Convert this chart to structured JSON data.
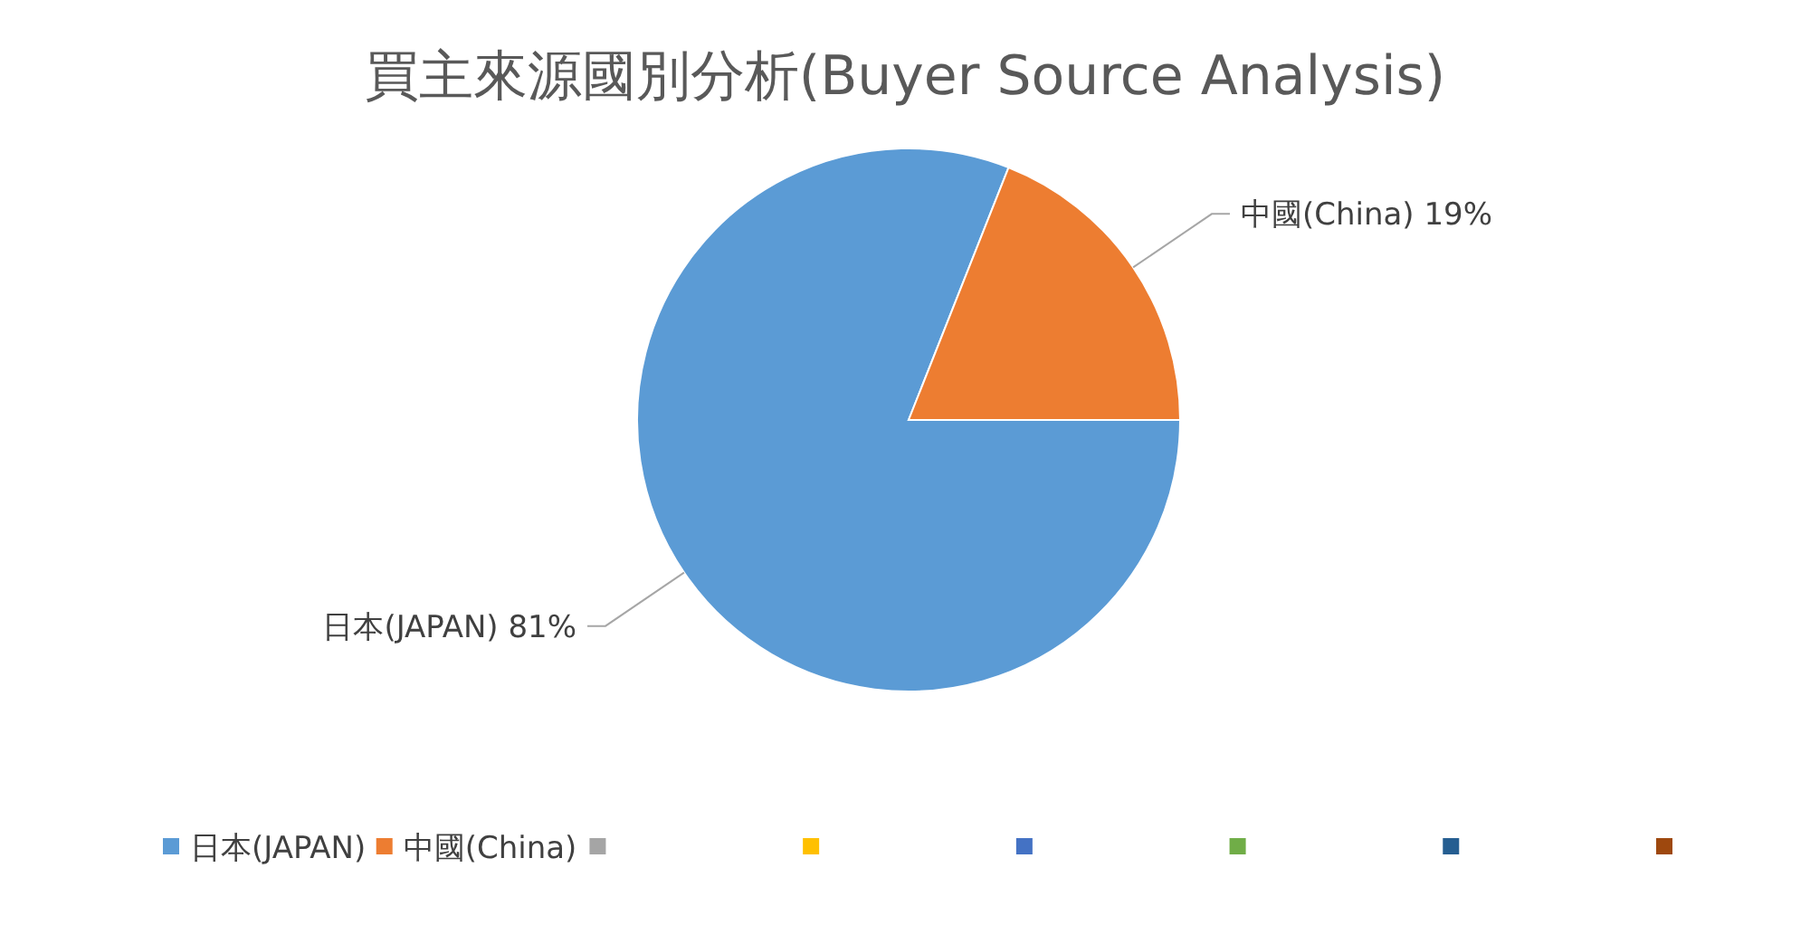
{
  "chart_data": {
    "type": "pie",
    "title": "買主來源國別分析(Buyer Source Analysis)",
    "categories": [
      "日本(JAPAN)",
      "中國(China)",
      null,
      null,
      null,
      null,
      null,
      null
    ],
    "values": [
      81,
      19,
      0,
      0,
      0,
      0,
      0,
      0
    ],
    "colors": [
      "#5b9bd5",
      "#ed7d31",
      "#a5a5a5",
      "#ffc000",
      "#4472c4",
      "#70ad47",
      "#255e91",
      "#9e480e"
    ],
    "value_labels": [
      "81%",
      "19%",
      null,
      null,
      null,
      null,
      null,
      null
    ],
    "legend": "bottom"
  }
}
